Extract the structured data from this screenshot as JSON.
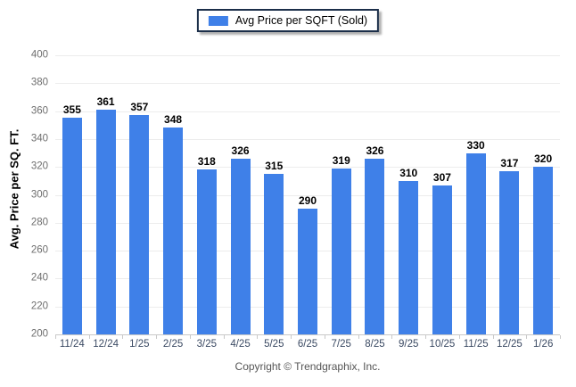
{
  "legend": {
    "label": "Avg Price per SQFT (Sold)",
    "swatch_color": "#3f80e8"
  },
  "footer": {
    "copyright": "Copyright © Trendgraphix, Inc."
  },
  "colors": {
    "bar": "#3f80e8",
    "gridline": "#ececec",
    "axis_line": "#c9c9c9",
    "y_tick_label": "#6e6e6e",
    "x_tick_label": "#3b4a63",
    "value_label": "#000000",
    "legend_border": "#1c2f4a",
    "footer_text": "#555555"
  },
  "chart_data": {
    "type": "bar",
    "title": "",
    "categories": [
      "11/24",
      "12/24",
      "1/25",
      "2/25",
      "3/25",
      "4/25",
      "5/25",
      "6/25",
      "7/25",
      "8/25",
      "9/25",
      "10/25",
      "11/25",
      "12/25",
      "1/26"
    ],
    "values": [
      355,
      361,
      357,
      348,
      318,
      326,
      315,
      290,
      319,
      326,
      310,
      307,
      330,
      317,
      320
    ],
    "series_name": "Avg Price per SQFT (Sold)",
    "xlabel": "",
    "ylabel": "Avg. Price per SQ. FT.",
    "ylim": [
      200,
      400
    ],
    "ytick_step": 20,
    "grid": true,
    "legend_position": "top-center",
    "value_labels": true
  }
}
